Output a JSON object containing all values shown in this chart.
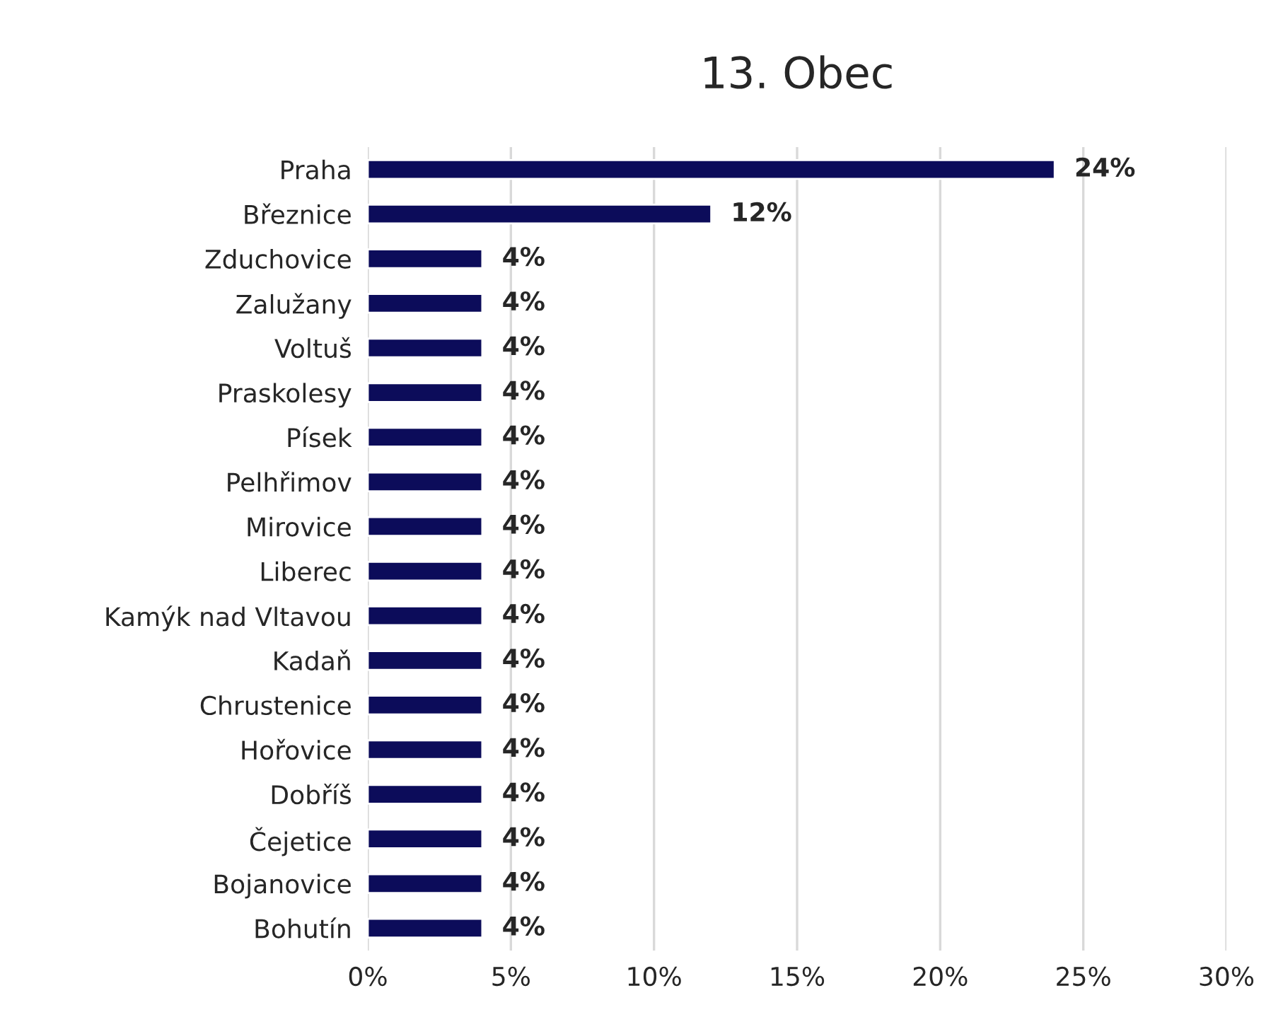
{
  "chart_data": {
    "type": "bar",
    "orientation": "horizontal",
    "title": "13. Obec",
    "categories": [
      "Praha",
      "Březnice",
      "Zduchovice",
      "Zalužany",
      "Voltuš",
      "Praskolesy",
      "Písek",
      "Pelhřimov",
      "Mirovice",
      "Liberec",
      "Kamýk nad Vltavou",
      "Kadaň",
      "Chrustenice",
      "Hořovice",
      "Dobříš",
      "Čejetice",
      "Bojanovice",
      "Bohutín"
    ],
    "values": [
      24,
      12,
      4,
      4,
      4,
      4,
      4,
      4,
      4,
      4,
      4,
      4,
      4,
      4,
      4,
      4,
      4,
      4
    ],
    "value_labels": [
      "24%",
      "12%",
      "4%",
      "4%",
      "4%",
      "4%",
      "4%",
      "4%",
      "4%",
      "4%",
      "4%",
      "4%",
      "4%",
      "4%",
      "4%",
      "4%",
      "4%",
      "4%"
    ],
    "color": "#0c0c5a",
    "xlim": [
      0,
      30
    ],
    "xticks": [
      {
        "value": 0,
        "label": "0%"
      },
      {
        "value": 5,
        "label": "5%"
      },
      {
        "value": 10,
        "label": "10%"
      },
      {
        "value": 15,
        "label": "15%"
      },
      {
        "value": 20,
        "label": "20%"
      },
      {
        "value": 25,
        "label": "25%"
      },
      {
        "value": 30,
        "label": "30%"
      }
    ],
    "grid": "x"
  }
}
